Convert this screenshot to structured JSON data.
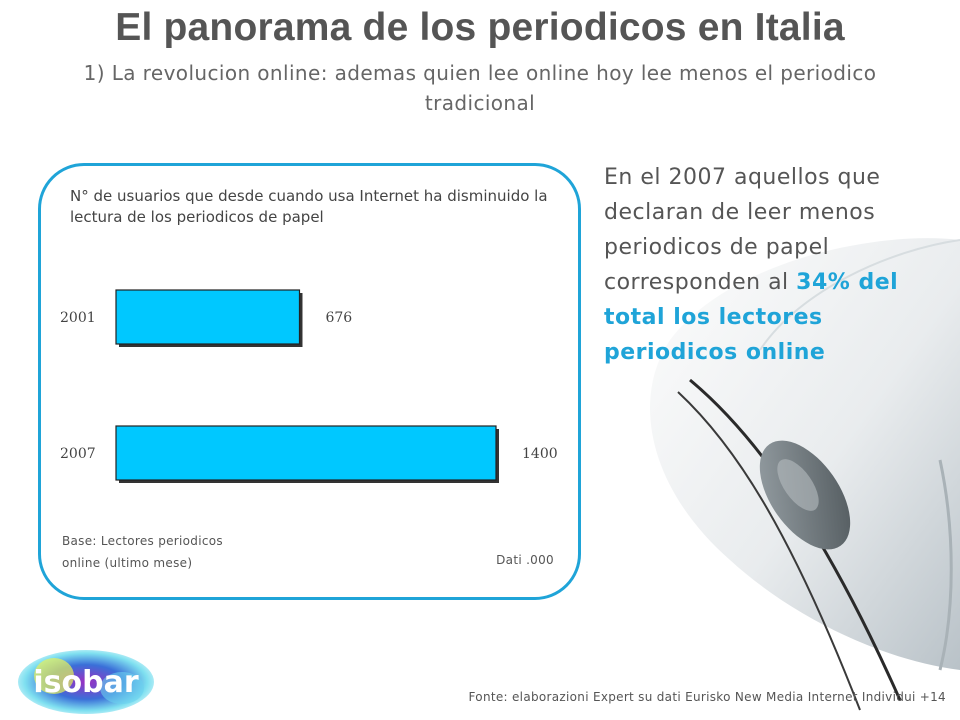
{
  "slide": {
    "title": "El panorama de los periodicos en Italia",
    "subtitle_line1": "1) La revolucion online: ademas  quien lee online hoy lee menos el periodico",
    "subtitle_line2": "tradicional"
  },
  "chart_data": {
    "type": "bar",
    "orientation": "horizontal",
    "title": "N° de usuarios que desde cuando usa Internet ha disminuido la lectura de los periodicos de papel",
    "categories": [
      "2001",
      "2007"
    ],
    "values": [
      676,
      1400
    ],
    "value_labels": [
      "676",
      "1400"
    ],
    "xlim": [
      0,
      1400
    ],
    "grid": false,
    "legend": "none",
    "bar_color": "#00c8ff",
    "base_note": "Base: Lectores periodicos online (ultimo mese)",
    "base_note_line1": "Base: Lectores periodicos",
    "base_note_line2": "online (ultimo mese)",
    "unit_note": "Dati .000"
  },
  "callout": {
    "text_normal": "En el 2007 aquellos que declaran de leer menos periodicos de papel corresponden  al ",
    "text_highlight": "34% del total los lectores periodicos online",
    "highlight_color": "#1fa4d8"
  },
  "logo": {
    "text": "isobar"
  },
  "footer": {
    "source": "Fonte: elaborazioni Expert su dati Eurisko New Media Internet Individui  +14"
  },
  "colors": {
    "accent": "#1fa4d8",
    "bar": "#00c8ff",
    "title_text": "#555555"
  }
}
